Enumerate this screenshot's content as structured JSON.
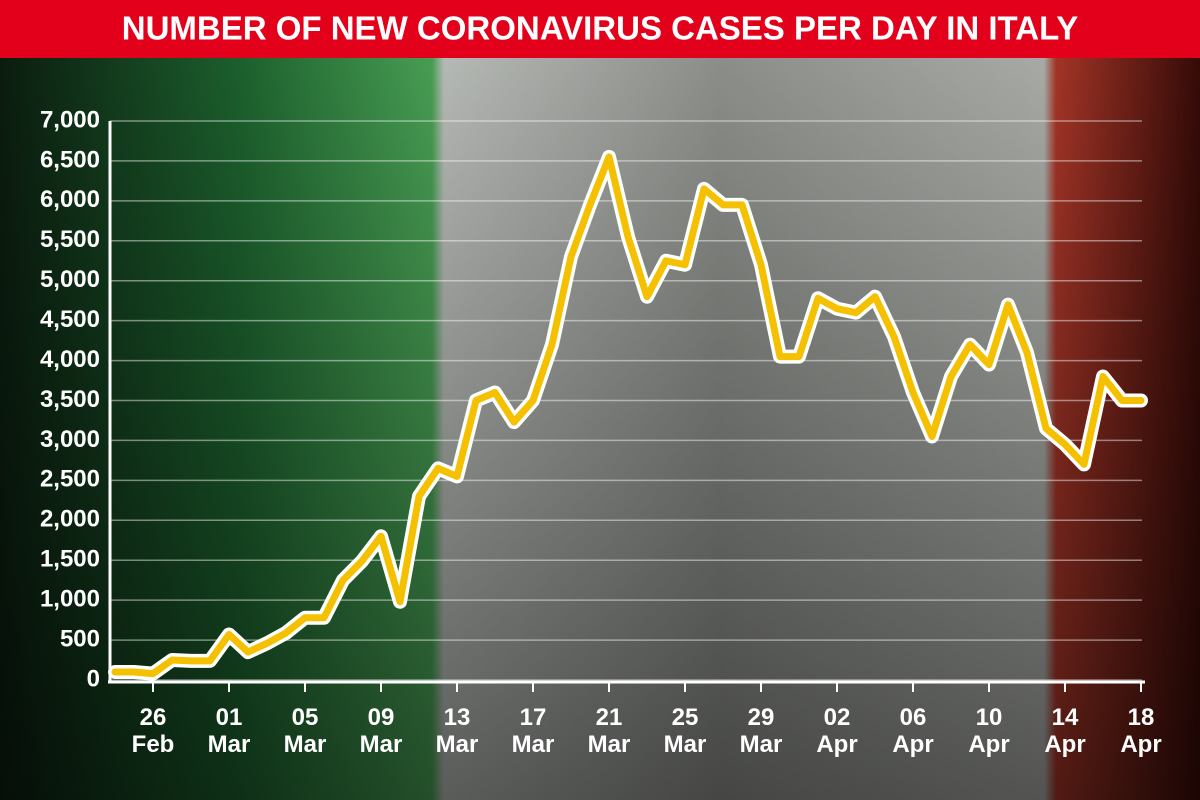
{
  "chart_data": {
    "type": "line",
    "title": "NUMBER OF NEW CORONAVIRUS CASES PER DAY IN ITALY",
    "categories": [
      null,
      null,
      "26 Feb",
      null,
      null,
      null,
      "01 Mar",
      null,
      null,
      null,
      "05 Mar",
      null,
      null,
      null,
      "09 Mar",
      null,
      null,
      null,
      "13 Mar",
      null,
      null,
      null,
      "17 Mar",
      null,
      null,
      null,
      "21 Mar",
      null,
      null,
      null,
      "25 Mar",
      null,
      null,
      null,
      "29 Mar",
      null,
      null,
      null,
      "02 Apr",
      null,
      null,
      null,
      "06 Apr",
      null,
      null,
      null,
      "10 Apr",
      null,
      null,
      null,
      "14 Apr",
      null,
      null,
      null,
      "18 Apr"
    ],
    "series": [
      {
        "name": "New cases",
        "color": "#f5c000",
        "values": [
          100,
          100,
          80,
          250,
          240,
          240,
          570,
          350,
          460,
          590,
          780,
          780,
          1250,
          1490,
          1800,
          980,
          2300,
          2650,
          2550,
          3500,
          3600,
          3230,
          3500,
          4200,
          5300,
          5950,
          6550,
          5550,
          4800,
          5250,
          5200,
          6150,
          5950,
          5950,
          5200,
          4050,
          4050,
          4780,
          4650,
          4600,
          4800,
          4300,
          3600,
          3050,
          3800,
          4200,
          3950,
          4700,
          4100,
          3150,
          2950,
          2700,
          3800,
          3500,
          3500
        ]
      }
    ],
    "ylim": [
      0,
      7000
    ],
    "yticks": [
      0,
      500,
      {
        "value": 1000,
        "label": "1,000"
      },
      {
        "value": 1500,
        "label": "1,500"
      },
      {
        "value": 2000,
        "label": "2,000"
      },
      {
        "value": 2500,
        "label": "2,500"
      },
      {
        "value": 3000,
        "label": "3,000"
      },
      {
        "value": 3500,
        "label": "3,500"
      },
      {
        "value": 4000,
        "label": "4,000"
      },
      {
        "value": 4500,
        "label": "4,500"
      },
      {
        "value": 5000,
        "label": "5,000"
      },
      {
        "value": 5500,
        "label": "5,500"
      },
      {
        "value": 6000,
        "label": "6,000"
      },
      {
        "value": 6500,
        "label": "6,500"
      },
      {
        "value": 7000,
        "label": "7,000"
      }
    ],
    "grid": true
  }
}
